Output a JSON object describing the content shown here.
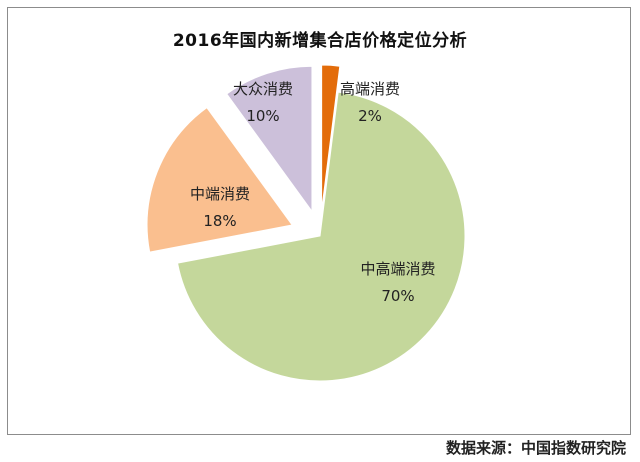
{
  "chart_data": {
    "type": "pie",
    "title": "2016年国内新增集合店价格定位分析",
    "slices": [
      {
        "label": "高端消费",
        "value": 2,
        "display": "2%",
        "color": "#e36c0a"
      },
      {
        "label": "中高端消费",
        "value": 70,
        "display": "70%",
        "color": "#c4d79b"
      },
      {
        "label": "中端消费",
        "value": 18,
        "display": "18%",
        "color": "#fabf8f"
      },
      {
        "label": "大众消费",
        "value": 10,
        "display": "10%",
        "color": "#ccc0da"
      }
    ],
    "exploded": true,
    "legend": "none"
  },
  "source": "数据来源：中国指数研究院"
}
